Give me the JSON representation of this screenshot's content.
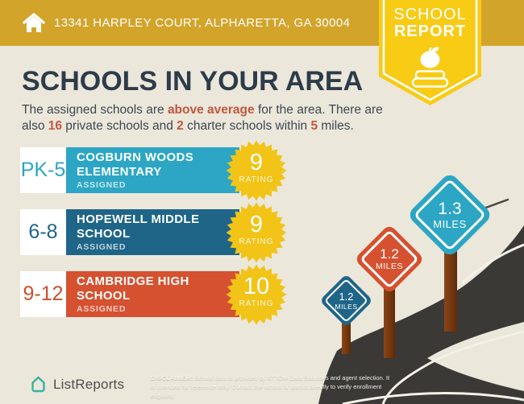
{
  "address_bar": {
    "address": "13341 HARPLEY COURT, ALPHARETTA, GA 30004"
  },
  "badge": {
    "line1": "SCHOOL",
    "line2": "REPORT",
    "icons": [
      "apple-icon",
      "book-icon"
    ]
  },
  "heading": "SCHOOLS IN YOUR AREA",
  "intro_segments": [
    {
      "text": "The assigned schools are ",
      "hl": false
    },
    {
      "text": "above average",
      "hl": true
    },
    {
      "text": " for the area. There are also ",
      "hl": false
    },
    {
      "text": "16",
      "hl": true
    },
    {
      "text": " private schools and ",
      "hl": false
    },
    {
      "text": "2",
      "hl": true
    },
    {
      "text": " charter schools within ",
      "hl": false
    },
    {
      "text": "5",
      "hl": true
    },
    {
      "text": " miles.",
      "hl": false
    }
  ],
  "schools": [
    {
      "grades": "PK-5",
      "name": "COGBURN WOODS ELEMENTARY",
      "status": "ASSIGNED",
      "rating": "9",
      "rating_label": "RATING",
      "color": "#2CA6C4"
    },
    {
      "grades": "6-8",
      "name": "HOPEWELL MIDDLE SCHOOL",
      "status": "ASSIGNED",
      "rating": "9",
      "rating_label": "RATING",
      "color": "#1E6588"
    },
    {
      "grades": "9-12",
      "name": "CAMBRIDGE HIGH SCHOOL",
      "status": "ASSIGNED",
      "rating": "10",
      "rating_label": "RATING",
      "color": "#D5512F"
    }
  ],
  "distance_signs": [
    {
      "value": "1.2",
      "unit": "MILES",
      "size": "small",
      "color": "#1E6588"
    },
    {
      "value": "1.2",
      "unit": "MILES",
      "size": "medium",
      "color": "#D5512F"
    },
    {
      "value": "1.3",
      "unit": "MILES",
      "size": "large",
      "color": "#2CA6C4"
    }
  ],
  "footer": {
    "brand": "ListReports",
    "disclaimer_label": "DISCLAIMER:",
    "disclaimer_text": " School data is provided by ATTOM Data Solutions and agent selection. It is intended for reference only. Contact the school or district directly to verify enrollment eligibility."
  },
  "colors": {
    "background": "#ECE7DB",
    "header_gold": "#D2A42A",
    "badge_yellow": "#F8CB15",
    "star_yellow": "#F2C417",
    "heading_navy": "#2D3C49",
    "accent_orange": "#C2573C",
    "elementary_teal": "#2CA6C4",
    "middle_blue": "#1E6588",
    "high_red": "#D5512F",
    "road_dark": "#3A3936",
    "post_brown": "#7A3A10",
    "logo_teal": "#38B2A0"
  }
}
